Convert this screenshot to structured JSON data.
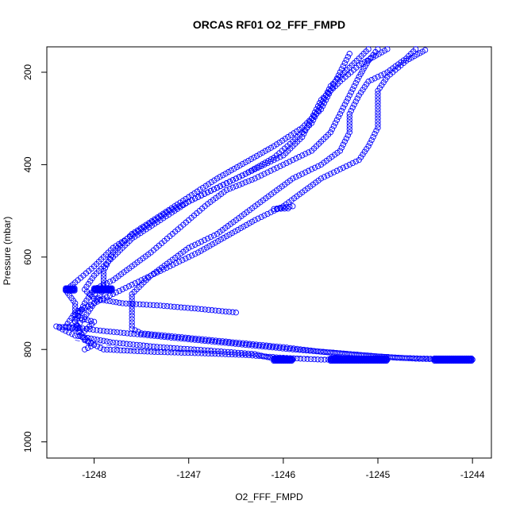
{
  "chart_data": {
    "type": "scatter",
    "title": "ORCAS RF01 O2_FFF_FMPD",
    "xlabel": "O2_FFF_FMPD",
    "ylabel": "Pressure (mbar)",
    "xlim": [
      -1248.5,
      -1243.8
    ],
    "ylim": [
      1035,
      145
    ],
    "y_reversed": true,
    "xticks": [
      -1248,
      -1247,
      -1246,
      -1245,
      -1244
    ],
    "yticks": [
      200,
      400,
      600,
      800,
      1000
    ],
    "marker": "open-circle",
    "color": "#0000ff",
    "grid": false,
    "series": [
      {
        "points": [
          [
            -1244.6,
            150
          ],
          [
            -1244.7,
            170
          ],
          [
            -1244.9,
            200
          ],
          [
            -1245.1,
            220
          ],
          [
            -1245.2,
            250
          ],
          [
            -1245.3,
            290
          ],
          [
            -1245.3,
            330
          ],
          [
            -1245.4,
            370
          ],
          [
            -1245.6,
            400
          ],
          [
            -1245.9,
            430
          ],
          [
            -1246.1,
            460
          ],
          [
            -1246.3,
            490
          ],
          [
            -1246.5,
            520
          ],
          [
            -1246.7,
            550
          ],
          [
            -1247.0,
            580
          ],
          [
            -1247.2,
            610
          ],
          [
            -1247.4,
            640
          ],
          [
            -1247.6,
            680
          ],
          [
            -1247.6,
            720
          ],
          [
            -1247.6,
            755
          ],
          [
            -1247.5,
            765
          ],
          [
            -1247.0,
            775
          ],
          [
            -1246.5,
            785
          ],
          [
            -1246.0,
            795
          ],
          [
            -1245.6,
            805
          ],
          [
            -1245.2,
            812
          ],
          [
            -1244.8,
            818
          ],
          [
            -1244.3,
            821
          ],
          [
            -1244.0,
            822
          ]
        ]
      },
      {
        "points": [
          [
            -1244.9,
            150
          ],
          [
            -1245.2,
            185
          ],
          [
            -1245.4,
            220
          ],
          [
            -1245.6,
            260
          ],
          [
            -1245.7,
            300
          ],
          [
            -1245.8,
            340
          ],
          [
            -1246.0,
            380
          ],
          [
            -1246.3,
            410
          ],
          [
            -1246.6,
            440
          ],
          [
            -1246.9,
            470
          ],
          [
            -1247.2,
            500
          ],
          [
            -1247.5,
            540
          ],
          [
            -1247.8,
            580
          ],
          [
            -1248.0,
            620
          ],
          [
            -1248.2,
            655
          ],
          [
            -1248.3,
            672
          ],
          [
            -1248.2,
            700
          ],
          [
            -1248.2,
            740
          ],
          [
            -1248.1,
            780
          ],
          [
            -1247.9,
            800
          ],
          [
            -1247.4,
            805
          ],
          [
            -1246.9,
            808
          ],
          [
            -1246.4,
            812
          ],
          [
            -1246.0,
            818
          ],
          [
            -1245.6,
            822
          ],
          [
            -1245.2,
            822
          ],
          [
            -1244.9,
            822
          ]
        ]
      },
      {
        "points": [
          [
            -1245.1,
            150
          ],
          [
            -1245.3,
            190
          ],
          [
            -1245.5,
            230
          ],
          [
            -1245.6,
            270
          ],
          [
            -1245.7,
            310
          ],
          [
            -1245.9,
            350
          ],
          [
            -1246.1,
            385
          ],
          [
            -1246.4,
            420
          ],
          [
            -1246.7,
            450
          ],
          [
            -1247.0,
            480
          ],
          [
            -1247.3,
            520
          ],
          [
            -1247.6,
            560
          ],
          [
            -1247.8,
            600
          ],
          [
            -1248.0,
            640
          ],
          [
            -1248.1,
            670
          ],
          [
            -1248.0,
            690
          ],
          [
            -1247.7,
            700
          ],
          [
            -1247.3,
            705
          ],
          [
            -1246.9,
            712
          ],
          [
            -1246.5,
            720
          ]
        ]
      },
      {
        "points": [
          [
            -1245.3,
            160
          ],
          [
            -1245.4,
            200
          ],
          [
            -1245.5,
            240
          ],
          [
            -1245.6,
            280
          ],
          [
            -1245.8,
            320
          ],
          [
            -1246.1,
            360
          ],
          [
            -1246.4,
            395
          ],
          [
            -1246.7,
            430
          ],
          [
            -1247.0,
            470
          ],
          [
            -1247.3,
            510
          ],
          [
            -1247.6,
            550
          ],
          [
            -1247.8,
            590
          ],
          [
            -1247.9,
            630
          ],
          [
            -1247.9,
            670
          ],
          [
            -1248.0,
            700
          ],
          [
            -1248.1,
            730
          ],
          [
            -1248.2,
            755
          ],
          [
            -1248.4,
            750
          ],
          [
            -1248.2,
            770
          ],
          [
            -1247.8,
            785
          ],
          [
            -1247.3,
            795
          ],
          [
            -1246.8,
            802
          ],
          [
            -1246.3,
            810
          ],
          [
            -1246.1,
            820
          ],
          [
            -1245.9,
            822
          ]
        ]
      },
      {
        "points": [
          [
            -1244.5,
            152
          ],
          [
            -1244.7,
            175
          ],
          [
            -1244.9,
            210
          ],
          [
            -1245.0,
            240
          ],
          [
            -1245.0,
            280
          ],
          [
            -1245.0,
            320
          ],
          [
            -1245.1,
            360
          ],
          [
            -1245.2,
            390
          ],
          [
            -1245.4,
            410
          ],
          [
            -1245.6,
            430
          ],
          [
            -1245.8,
            460
          ],
          [
            -1246.0,
            490
          ],
          [
            -1246.3,
            520
          ],
          [
            -1246.6,
            555
          ],
          [
            -1246.9,
            590
          ],
          [
            -1247.2,
            620
          ],
          [
            -1247.5,
            650
          ],
          [
            -1247.8,
            680
          ],
          [
            -1248.0,
            700
          ],
          [
            -1248.2,
            720
          ],
          [
            -1248.3,
            750
          ],
          [
            -1247.9,
            760
          ],
          [
            -1247.4,
            770
          ],
          [
            -1246.9,
            780
          ],
          [
            -1246.4,
            790
          ],
          [
            -1245.9,
            800
          ],
          [
            -1245.4,
            808
          ],
          [
            -1245.0,
            815
          ],
          [
            -1244.6,
            820
          ],
          [
            -1244.2,
            822
          ]
        ]
      },
      {
        "points": [
          [
            -1245.0,
            150
          ],
          [
            -1245.1,
            175
          ],
          [
            -1245.2,
            210
          ],
          [
            -1245.3,
            250
          ],
          [
            -1245.4,
            290
          ],
          [
            -1245.5,
            330
          ],
          [
            -1245.7,
            370
          ],
          [
            -1246.0,
            400
          ],
          [
            -1246.3,
            430
          ],
          [
            -1246.6,
            455
          ],
          [
            -1246.8,
            485
          ],
          [
            -1247.0,
            520
          ],
          [
            -1247.2,
            555
          ],
          [
            -1247.4,
            590
          ],
          [
            -1247.6,
            620
          ],
          [
            -1247.8,
            650
          ],
          [
            -1248.0,
            670
          ],
          [
            -1248.1,
            700
          ],
          [
            -1248.2,
            740
          ],
          [
            -1248.15,
            770
          ],
          [
            -1248.0,
            790
          ],
          [
            -1248.1,
            800
          ]
        ]
      },
      {
        "points": [
          [
            -1245.9,
            490
          ],
          [
            -1246.0,
            493
          ],
          [
            -1246.1,
            496
          ],
          [
            -1245.95,
            495
          ]
        ]
      },
      {
        "points": [
          [
            -1248.0,
            700
          ],
          [
            -1248.1,
            710
          ],
          [
            -1248.2,
            725
          ],
          [
            -1248.1,
            735
          ],
          [
            -1248.0,
            740
          ],
          [
            -1248.05,
            750
          ],
          [
            -1248.1,
            760
          ]
        ]
      }
    ],
    "clusters": [
      {
        "x_from": -1246.1,
        "x_to": -1245.9,
        "y": 822
      },
      {
        "x_from": -1245.5,
        "x_to": -1244.9,
        "y": 822
      },
      {
        "x_from": -1244.4,
        "x_to": -1244.0,
        "y": 822
      },
      {
        "x_from": -1248.3,
        "x_to": -1248.2,
        "y": 670
      },
      {
        "x_from": -1248.0,
        "x_to": -1247.8,
        "y": 670
      }
    ],
    "track": [
      [
        -1248.2,
        780
      ],
      [
        -1247.6,
        800
      ],
      [
        -1247.0,
        805
      ],
      [
        -1246.5,
        812
      ],
      [
        -1246.0,
        815
      ],
      [
        -1245.5,
        818
      ],
      [
        -1245.0,
        820
      ],
      [
        -1244.5,
        821
      ],
      [
        -1244.0,
        822
      ]
    ]
  }
}
